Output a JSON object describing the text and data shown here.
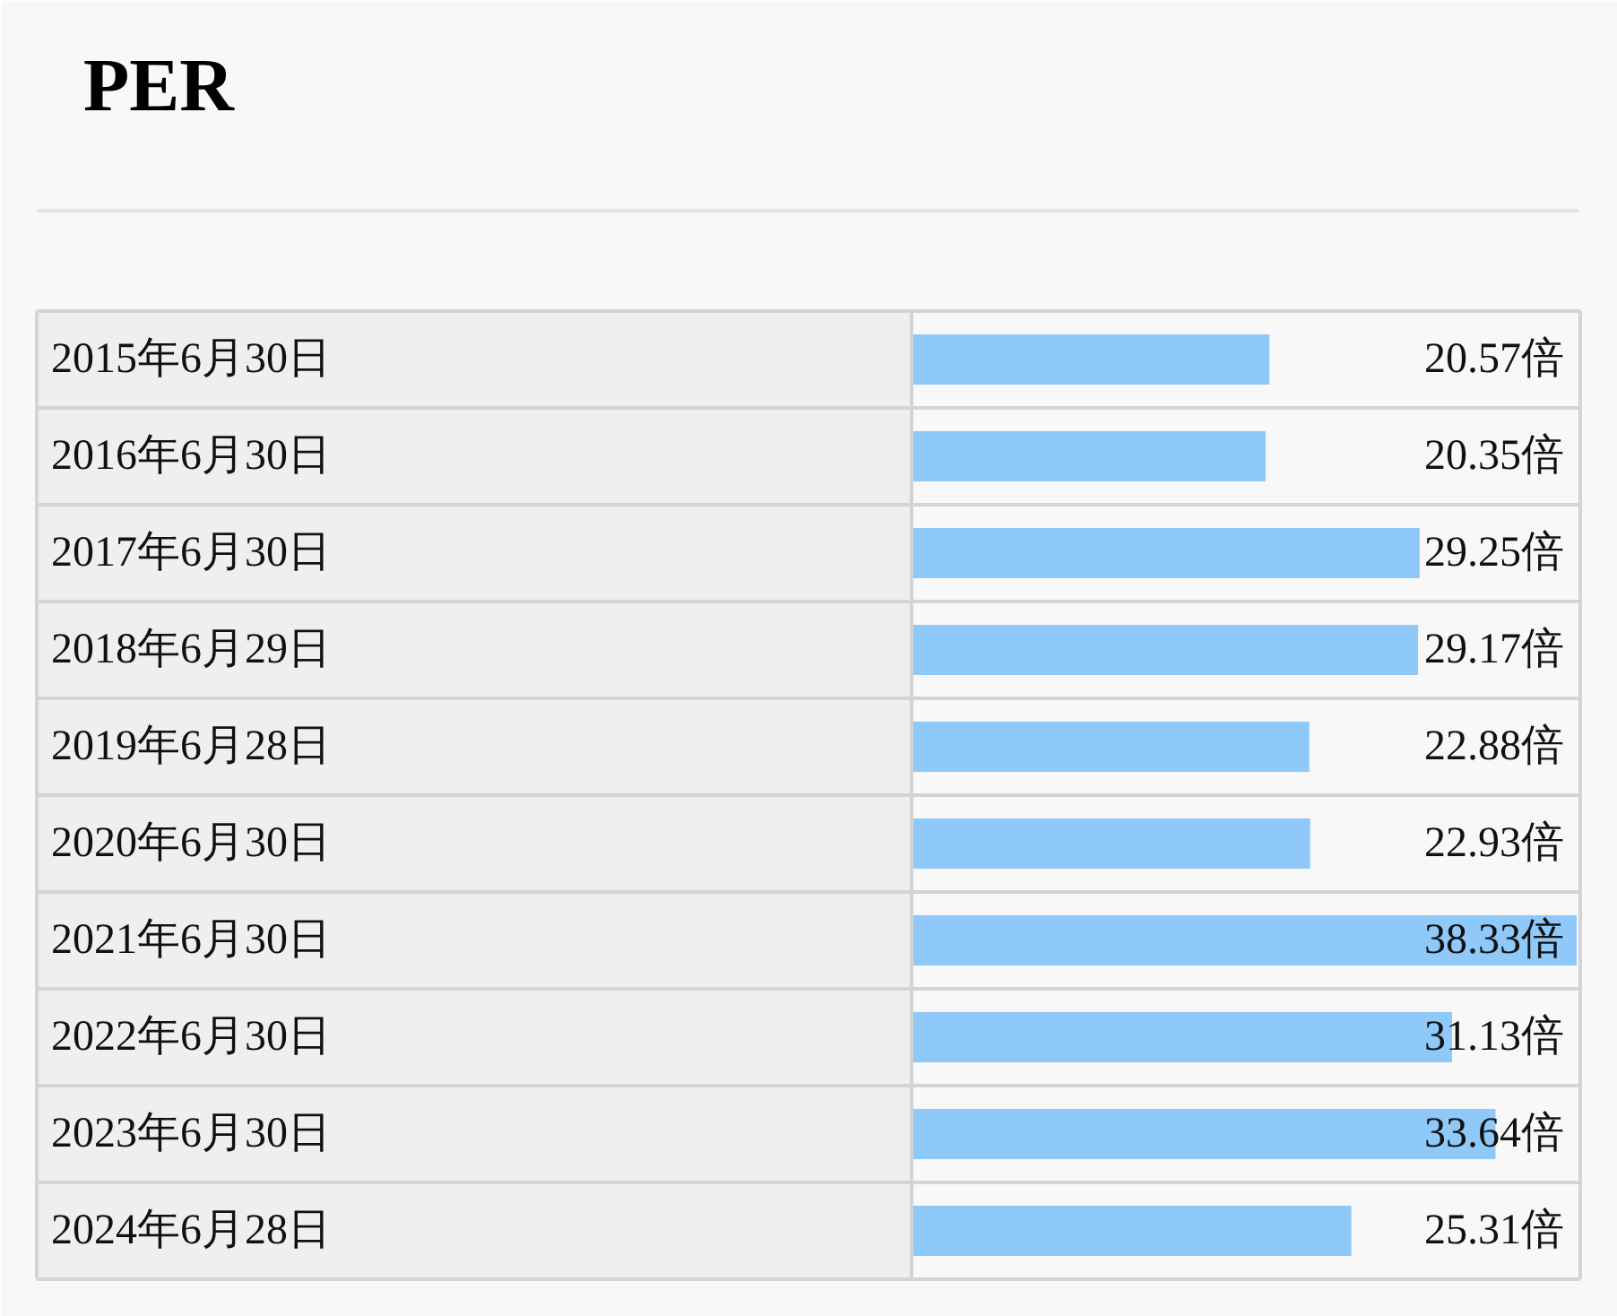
{
  "chart_data": {
    "type": "bar",
    "orientation": "horizontal",
    "title": "PER",
    "categories": [
      "2015年6月30日",
      "2016年6月30日",
      "2017年6月30日",
      "2018年6月29日",
      "2019年6月28日",
      "2020年6月30日",
      "2021年6月30日",
      "2022年6月30日",
      "2023年6月30日",
      "2024年6月28日"
    ],
    "values": [
      20.57,
      20.35,
      29.25,
      29.17,
      22.88,
      22.93,
      38.33,
      31.13,
      33.64,
      25.31
    ],
    "value_labels": [
      "20.57倍",
      "20.35倍",
      "29.25倍",
      "29.17倍",
      "22.88倍",
      "22.93倍",
      "38.33倍",
      "31.13倍",
      "33.64倍",
      "25.31倍"
    ],
    "color": "#8ec9f9"
  }
}
